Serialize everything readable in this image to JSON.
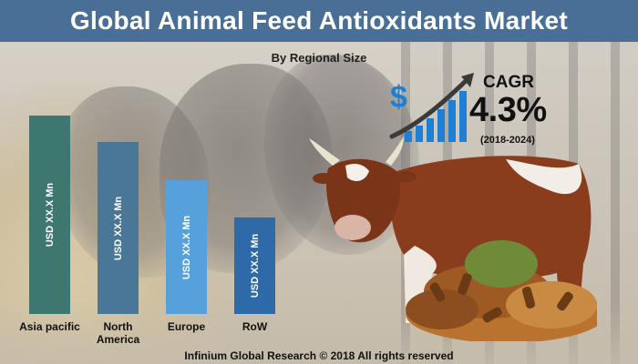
{
  "header": {
    "title": "Global Animal Feed Antioxidants Market",
    "subtitle": "By Regional Size"
  },
  "cagr": {
    "label": "CAGR",
    "value": "4.3%",
    "period": "(2018-2024)",
    "currency_icon": "dollar-sign-icon"
  },
  "chart_data": {
    "type": "bar",
    "title": "Global Animal Feed Antioxidants Market",
    "subtitle": "By Regional Size",
    "categories": [
      "Asia pacific",
      "North America",
      "Europe",
      "RoW"
    ],
    "category_lines": [
      [
        "Asia pacific"
      ],
      [
        "North",
        "America"
      ],
      [
        "Europe"
      ],
      [
        "RoW"
      ]
    ],
    "relative_values": [
      1.0,
      0.868,
      0.674,
      0.488
    ],
    "value_labels": [
      "USD XX.X Mn",
      "USD XX.X Mn",
      "USD XX.X Mn",
      "USD XX.X Mn"
    ],
    "colors": [
      "#3e7670",
      "#4a7698",
      "#56a1dc",
      "#2f6aa8"
    ],
    "axis": "none",
    "grid": false,
    "legend": "none"
  },
  "footer": {
    "text": "Infinium Global Research © 2018 All rights reserved"
  },
  "colors": {
    "title_bar": "#4a6f97",
    "cagr_arrow": "#3a3a3a",
    "cagr_bars": "#1e7fd4"
  }
}
